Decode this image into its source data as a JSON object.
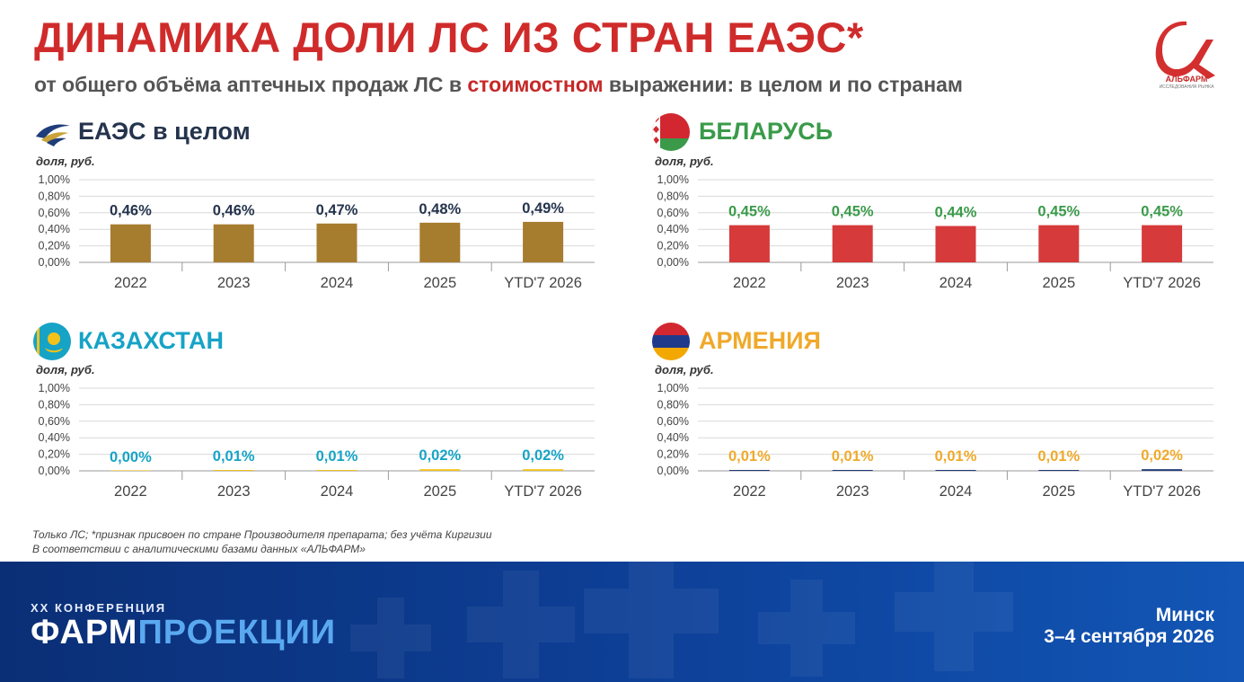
{
  "header": {
    "title": "ДИНАМИКА ДОЛИ ЛС ИЗ СТРАН ЕАЭС*",
    "subtitle_pre": "от общего объёма аптечных продаж ЛС в ",
    "subtitle_hl": "стоимостном",
    "subtitle_post": " выражении: в целом и по странам"
  },
  "logo": {
    "name": "АЛЬФАРМ",
    "sub": "ИССЛЕДОВАНИЯ РЫНКА"
  },
  "chart_data": [
    {
      "id": "eaeu",
      "type": "bar",
      "title": "ЕАЭС в целом",
      "ylabel": "доля, руб.",
      "categories": [
        "2022",
        "2023",
        "2024",
        "2025",
        "YTD'7 2026"
      ],
      "values": [
        0.46,
        0.46,
        0.47,
        0.48,
        0.49
      ],
      "value_labels": [
        "0,46%",
        "0,46%",
        "0,47%",
        "0,48%",
        "0,49%"
      ],
      "yticks": [
        "0,00%",
        "0,20%",
        "0,40%",
        "0,60%",
        "0,80%",
        "1,00%"
      ],
      "ylim": [
        0,
        1
      ],
      "grid": true,
      "bar_color": "#a67c2e",
      "title_color": "#25344d",
      "label_color": "#25344d"
    },
    {
      "id": "belarus",
      "type": "bar",
      "title": "БЕЛАРУСЬ",
      "ylabel": "доля, руб.",
      "categories": [
        "2022",
        "2023",
        "2024",
        "2025",
        "YTD'7 2026"
      ],
      "values": [
        0.45,
        0.45,
        0.44,
        0.45,
        0.45
      ],
      "value_labels": [
        "0,45%",
        "0,45%",
        "0,44%",
        "0,45%",
        "0,45%"
      ],
      "yticks": [
        "0,00%",
        "0,20%",
        "0,40%",
        "0,60%",
        "0,80%",
        "1,00%"
      ],
      "ylim": [
        0,
        1
      ],
      "grid": true,
      "bar_color": "#d63a3a",
      "title_color": "#3a9a4a",
      "label_color": "#3a9a4a"
    },
    {
      "id": "kazakhstan",
      "type": "bar",
      "title": "КАЗАХСТАН",
      "ylabel": "доля, руб.",
      "categories": [
        "2022",
        "2023",
        "2024",
        "2025",
        "YTD'7 2026"
      ],
      "values": [
        0.0,
        0.01,
        0.01,
        0.02,
        0.02
      ],
      "value_labels": [
        "0,00%",
        "0,01%",
        "0,01%",
        "0,02%",
        "0,02%"
      ],
      "yticks": [
        "0,00%",
        "0,20%",
        "0,40%",
        "0,60%",
        "0,80%",
        "1,00%"
      ],
      "ylim": [
        0,
        1
      ],
      "grid": true,
      "bar_color": "#f2c21b",
      "title_color": "#16a3c6",
      "label_color": "#16a3c6"
    },
    {
      "id": "armenia",
      "type": "bar",
      "title": "АРМЕНИЯ",
      "ylabel": "доля, руб.",
      "categories": [
        "2022",
        "2023",
        "2024",
        "2025",
        "YTD'7 2026"
      ],
      "values": [
        0.01,
        0.01,
        0.01,
        0.01,
        0.02
      ],
      "value_labels": [
        "0,01%",
        "0,01%",
        "0,01%",
        "0,01%",
        "0,02%"
      ],
      "yticks": [
        "0,00%",
        "0,20%",
        "0,40%",
        "0,60%",
        "0,80%",
        "1,00%"
      ],
      "ylim": [
        0,
        1
      ],
      "grid": true,
      "bar_color": "#1f3a7a",
      "title_color": "#f0a92a",
      "label_color": "#f0a92a"
    }
  ],
  "footnotes": {
    "line1": "Только ЛС; *признак присвоен по стране Производителя препарата; без учёта Киргизии",
    "line2": "В соответствии с аналитическими базами данных «АЛЬФАРМ»"
  },
  "footer": {
    "conf_small": "XX КОНФЕРЕНЦИЯ",
    "conf_big_a": "ФАРМ",
    "conf_big_b": "ПРОЕКЦИИ",
    "city": "Минск",
    "dates": "3–4 сентября 2026"
  },
  "colors": {
    "title": "#d02b2b",
    "subtitle": "#545454",
    "subtitle_highlight": "#c62828",
    "footer_bg": "#0d3d93",
    "footer_accent": "#5aa9f0"
  },
  "icons": {
    "eaeu": "eaeu-emblem-icon",
    "belarus": "belarus-flag-icon",
    "kazakhstan": "kazakhstan-flag-icon",
    "armenia": "armenia-flag-icon",
    "logo": "alfarm-logo-icon"
  }
}
